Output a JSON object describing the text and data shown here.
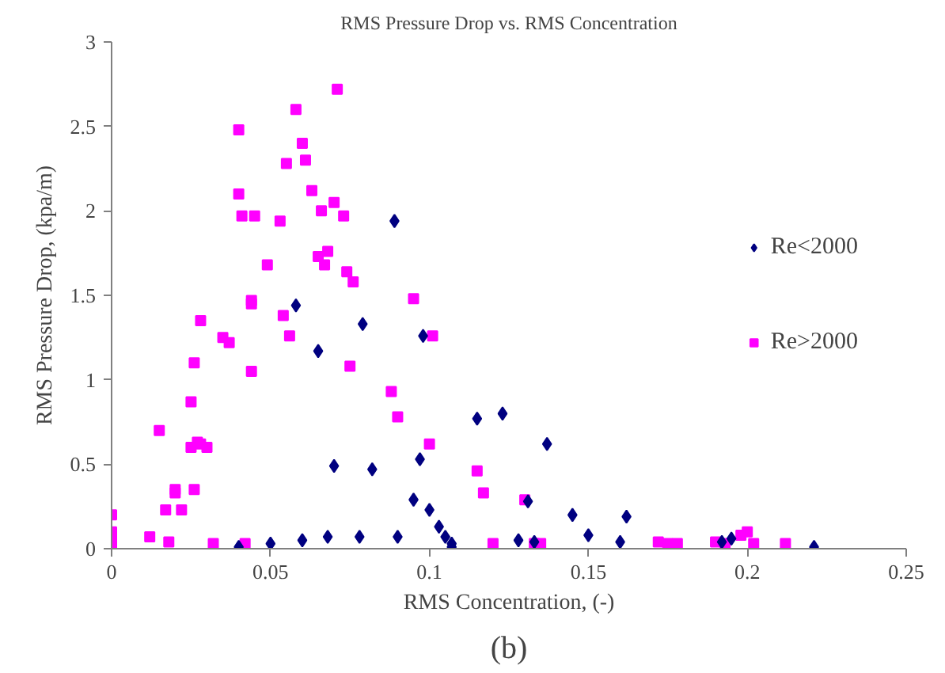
{
  "chart_data": {
    "type": "scatter",
    "title": "RMS Pressure Drop vs. RMS Concentration",
    "xlabel": "RMS Concentration, (-)",
    "ylabel": "RMS Pressure Drop, (kpa/m)",
    "annotations": [
      "(b)"
    ],
    "xlim": [
      0,
      0.25
    ],
    "xticks": [
      0,
      0.05,
      0.1,
      0.15,
      0.2,
      0.25
    ],
    "ylim": [
      0,
      3
    ],
    "yticks": [
      0,
      0.5,
      1,
      1.5,
      2,
      2.5,
      3
    ],
    "grid": false,
    "legend": "right",
    "series": [
      {
        "name": "Re<2000",
        "color": "#000080",
        "marker": "diamond",
        "x": [
          0.04,
          0.05,
          0.058,
          0.06,
          0.065,
          0.068,
          0.07,
          0.078,
          0.079,
          0.082,
          0.089,
          0.09,
          0.095,
          0.097,
          0.098,
          0.1,
          0.103,
          0.105,
          0.107,
          0.107,
          0.115,
          0.123,
          0.128,
          0.131,
          0.133,
          0.137,
          0.145,
          0.15,
          0.16,
          0.162,
          0.192,
          0.195,
          0.221
        ],
        "values": [
          0.01,
          0.03,
          1.44,
          0.05,
          1.17,
          0.07,
          0.49,
          0.07,
          1.33,
          0.47,
          1.94,
          0.07,
          0.29,
          0.53,
          1.26,
          0.23,
          0.13,
          0.07,
          0.03,
          0.01,
          0.77,
          0.8,
          0.05,
          0.28,
          0.04,
          0.62,
          0.2,
          0.08,
          0.04,
          0.19,
          0.04,
          0.06,
          0.01
        ]
      },
      {
        "name": "Re>2000",
        "color": "#ff00ff",
        "marker": "square",
        "x": [
          0,
          0,
          0,
          0,
          0.012,
          0.015,
          0.017,
          0.018,
          0.02,
          0.02,
          0.022,
          0.025,
          0.025,
          0.026,
          0.027,
          0.026,
          0.028,
          0.03,
          0.028,
          0.032,
          0.035,
          0.037,
          0.04,
          0.04,
          0.041,
          0.042,
          0.044,
          0.044,
          0.044,
          0.045,
          0.049,
          0.053,
          0.054,
          0.055,
          0.056,
          0.058,
          0.06,
          0.061,
          0.063,
          0.065,
          0.066,
          0.067,
          0.068,
          0.07,
          0.071,
          0.073,
          0.074,
          0.075,
          0.076,
          0.088,
          0.09,
          0.095,
          0.1,
          0.101,
          0.115,
          0.117,
          0.12,
          0.13,
          0.133,
          0.135,
          0.172,
          0.175,
          0.178,
          0.19,
          0.193,
          0.198,
          0.2,
          0.202,
          0.212
        ],
        "values": [
          0.2,
          0.1,
          0.05,
          0.02,
          0.07,
          0.7,
          0.23,
          0.04,
          0.35,
          0.33,
          0.23,
          0.6,
          0.87,
          1.1,
          0.63,
          0.35,
          0.62,
          0.6,
          1.35,
          0.03,
          1.25,
          1.22,
          2.48,
          2.1,
          1.97,
          0.03,
          1.47,
          1.45,
          1.05,
          1.97,
          1.68,
          1.94,
          1.38,
          2.28,
          1.26,
          2.6,
          2.4,
          2.3,
          2.12,
          1.73,
          2.0,
          1.68,
          1.76,
          2.05,
          2.72,
          1.97,
          1.64,
          1.08,
          1.58,
          0.93,
          0.78,
          1.48,
          0.62,
          1.26,
          0.46,
          0.33,
          0.03,
          0.29,
          0.03,
          0.03,
          0.04,
          0.03,
          0.03,
          0.04,
          0.03,
          0.08,
          0.1,
          0.03,
          0.03
        ]
      }
    ]
  }
}
